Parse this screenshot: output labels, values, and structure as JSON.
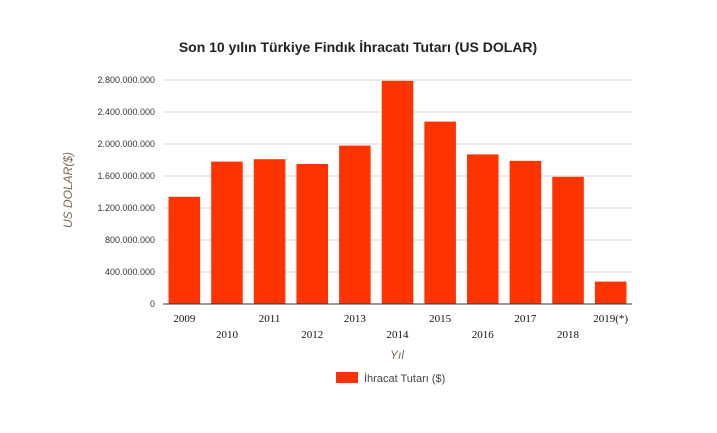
{
  "chart_data": {
    "type": "bar",
    "title": "Son 10 yılın Türkiye Findık İhracatı Tutarı (US DOLAR)",
    "xlabel": "Yıl",
    "ylabel": "US DOLAR($)",
    "categories": [
      "2009",
      "2010",
      "2011",
      "2012",
      "2013",
      "2014",
      "2015",
      "2016",
      "2017",
      "2018",
      "2019(*)"
    ],
    "series": [
      {
        "name": "İhracat Tutarı ($)",
        "color": "#ff3300",
        "values": [
          1340000000,
          1780000000,
          1810000000,
          1750000000,
          1980000000,
          2790000000,
          2280000000,
          1870000000,
          1790000000,
          1590000000,
          280000000
        ]
      }
    ],
    "ylim": [
      0,
      2800000000
    ],
    "yticks": [
      "0",
      "400.000.000",
      "800.000.000",
      "1.200.000.000",
      "1.600.000.000",
      "2.000.000.000",
      "2.400.000.000",
      "2.800.000.000"
    ],
    "grid": true,
    "legend_position": "bottom-center"
  }
}
